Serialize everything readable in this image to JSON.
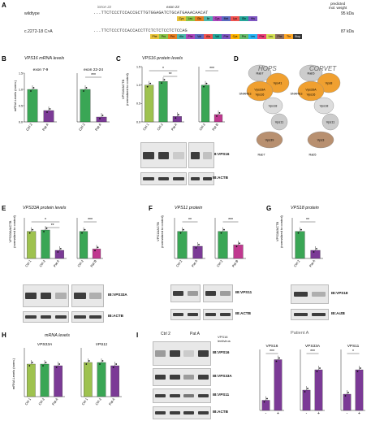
{
  "panels": {
    "A": {
      "letter": "A",
      "intron": "intron 22",
      "exon": "exon 23",
      "predicted": "predicted\nmol. weight",
      "wt_label": "wildtype",
      "wt_seq": "...TTCTCCCTCCACCGCTTGTGGAGATCTGCATGAAACAACAT",
      "wt_mw": "95 kDa",
      "mut_label": "c.2272-18 C>A",
      "mut_seq": "...TTCTCCCTCCACCACCTTCTCTCTCCTCTCCAG",
      "mut_mw": "87 kDa",
      "wt_aa": [
        "Cys",
        "Leu",
        "Glu",
        "Ile",
        "Cys",
        "Met",
        "Lys",
        "Gln",
        "His"
      ],
      "mut_aa": [
        "Phe",
        "Pro",
        "Pro",
        "Ala",
        "Phe",
        "Val",
        "Ala",
        "Val",
        "Phe",
        "Cys",
        "Pro",
        "Leu",
        "Phe",
        "Leu",
        "Phe",
        "Thr",
        "Stop"
      ]
    },
    "B": {
      "letter": "B",
      "title": "VPS16 mRNA levels",
      "ylabel": "mRNA Levels (norm.)",
      "chart_data": [
        {
          "type": "bar",
          "title": "exon 7-9",
          "categories": [
            "Ctrl 2",
            "Pat A"
          ],
          "values": [
            1.0,
            0.35
          ],
          "ylim": [
            0,
            1.5
          ],
          "yticks": [
            "0.0",
            "0.5",
            "1.0",
            "1.5"
          ]
        },
        {
          "type": "bar",
          "title": "exon 22-24",
          "categories": [
            "Ctrl 2",
            "Pat A"
          ],
          "values": [
            1.0,
            0.15
          ],
          "ylim": [
            0,
            1.5
          ],
          "sig": "***"
        }
      ]
    },
    "C": {
      "letter": "C",
      "title": "VPS16 protein levels",
      "ylabel": "VPS16/ACTB\n(normalized to control)",
      "chart_data": [
        {
          "type": "bar",
          "categories": [
            "Ctrl 1",
            "Ctrl 2",
            "Pat A"
          ],
          "values": [
            1.0,
            1.1,
            0.15
          ],
          "ylim": [
            0,
            1.5
          ],
          "yticks": [
            "0.0",
            "0.5",
            "1.0",
            "1.5"
          ],
          "sig": [
            "*",
            "**"
          ]
        },
        {
          "type": "bar",
          "categories": [
            "Ctrl 2",
            "Pat B"
          ],
          "values": [
            1.0,
            0.2
          ],
          "ylim": [
            0,
            1.5
          ],
          "sig": "***"
        }
      ],
      "blot_labels": [
        "IB:VPS16",
        "IB:ACTB"
      ]
    },
    "D": {
      "letter": "D",
      "hops": "HOPS",
      "corvet": "CORVET",
      "hops_parts": [
        "Rab7",
        "Vps41",
        "Vps33A",
        "Vps16",
        "Vps18",
        "Vps11",
        "Vps39",
        "Rab7",
        "SNAREs"
      ],
      "corvet_parts": [
        "Rab5",
        "Vps8",
        "Vps33A",
        "Vps16",
        "Vps18",
        "Vps11",
        "Vps3",
        "Rab5",
        "SNAREs"
      ]
    },
    "E": {
      "letter": "E",
      "title": "VPS33A protein levels",
      "ylabel": "VPS33A/ACTB\n(normalized to control)",
      "chart_data": [
        {
          "type": "bar",
          "categories": [
            "Ctrl 1",
            "Ctrl 2",
            "Pat A"
          ],
          "values": [
            1.0,
            1.05,
            0.3
          ],
          "ylim": [
            0,
            1.5
          ],
          "sig": [
            "*",
            "**"
          ]
        },
        {
          "type": "bar",
          "categories": [
            "Ctrl 2",
            "Pat B"
          ],
          "values": [
            1.0,
            0.35
          ],
          "ylim": [
            0,
            1.5
          ],
          "sig": "***"
        }
      ],
      "blot_labels": [
        "IB:VPS33A",
        "IB:ACTB"
      ]
    },
    "F": {
      "letter": "F",
      "title": "VPS11 protein",
      "ylabel": "VPS11/ACTB\n(normalized to control)",
      "chart_data": [
        {
          "type": "bar",
          "categories": [
            "Ctrl 2",
            "Pat A"
          ],
          "values": [
            1.0,
            0.45
          ],
          "ylim": [
            0,
            1.5
          ],
          "sig": "**"
        },
        {
          "type": "bar",
          "categories": [
            "Ctrl 2",
            "Pat B"
          ],
          "values": [
            1.0,
            0.5
          ],
          "ylim": [
            0,
            1.5
          ],
          "sig": "***"
        }
      ],
      "blot_labels": [
        "IB:VPS11",
        "IB:ACTB"
      ]
    },
    "G": {
      "letter": "G",
      "title": "VPS18 protein",
      "ylabel": "VPS18/ACTB\n(normalized to control)",
      "chart_data": [
        {
          "type": "bar",
          "categories": [
            "Ctrl 2",
            "Pat A"
          ],
          "values": [
            1.0,
            0.3
          ],
          "ylim": [
            0,
            1.5
          ],
          "sig": "**"
        }
      ],
      "blot_labels": [
        "IB:VPS18",
        "IB:ActB"
      ]
    },
    "H": {
      "letter": "H",
      "title": "mRNA levels",
      "ylabel": "mRNA Levels (norm.)",
      "chart_data": [
        {
          "type": "bar",
          "title": "VPS33A",
          "categories": [
            "Ctrl 1",
            "Ctrl 2",
            "Pat A"
          ],
          "values": [
            1.0,
            1.0,
            0.95
          ],
          "ylim": [
            0,
            1.5
          ]
        },
        {
          "type": "bar",
          "title": "VPS11",
          "categories": [
            "Ctrl 1",
            "Ctrl 2",
            "Pat A"
          ],
          "values": [
            1.05,
            1.05,
            0.95
          ],
          "ylim": [
            0,
            1.5
          ]
        }
      ]
    },
    "I": {
      "letter": "I",
      "lanes": [
        "Ctrl 2",
        "Pat A"
      ],
      "lentivirus": "VPS16\nlentivirus",
      "blot_labels": [
        "IB:VPS16",
        "IB:VPS33A",
        "IB:VPS11",
        "IB:ACTB"
      ],
      "patient": "Patient A",
      "chart_data": [
        {
          "type": "bar",
          "title": "VPS16",
          "categories": [
            "-",
            "+"
          ],
          "values": [
            0.2,
            1.0
          ],
          "ylim": [
            0,
            1.2
          ],
          "sig": "***"
        },
        {
          "type": "bar",
          "title": "VPS33A",
          "categories": [
            "-",
            "+"
          ],
          "values": [
            0.5,
            1.0
          ],
          "ylim": [
            0,
            1.5
          ],
          "sig": "***"
        },
        {
          "type": "bar",
          "title": "VPS11",
          "categories": [
            "-",
            "+"
          ],
          "values": [
            0.4,
            1.0
          ],
          "ylim": [
            0,
            1.5
          ],
          "sig": "*"
        }
      ]
    }
  },
  "colors": {
    "green": "#3aa655",
    "lime": "#9ec24f",
    "purple": "#7b3a96",
    "pink": "#c0388f",
    "orange": "#f0a030",
    "gray": "#b0b0b0"
  }
}
